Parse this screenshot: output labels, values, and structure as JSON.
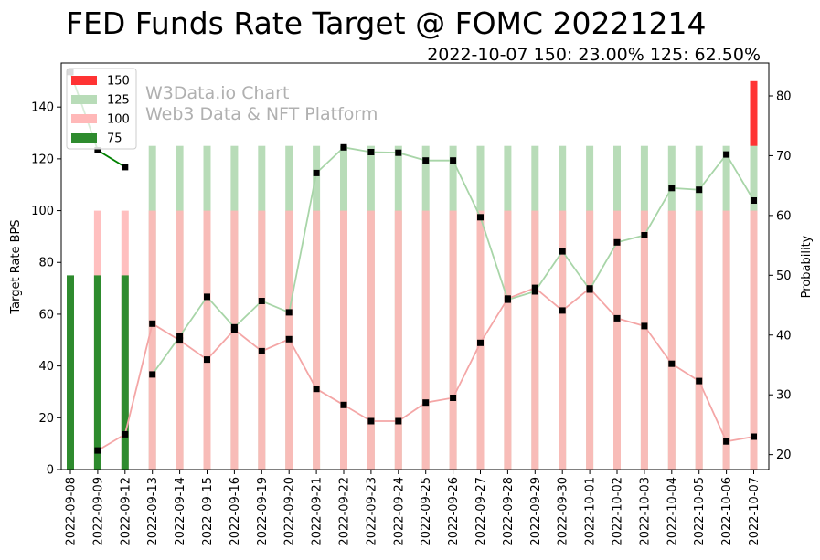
{
  "chart_data": {
    "type": "bar",
    "title": "FED Funds Rate Target @ FOMC 20221214",
    "subtitle": "2022-10-07 150: 23.00% 125: 62.50%",
    "watermark": [
      "W3Data.io Chart",
      "Web3 Data & NFT Platform"
    ],
    "ylabel_left": "Target Rate BPS",
    "ylabel_right": "Probability",
    "ylim_left": [
      0,
      157
    ],
    "ylim_right": [
      17.5,
      85.5
    ],
    "yticks_left": [
      "0",
      "20",
      "40",
      "60",
      "80",
      "100",
      "120",
      "140"
    ],
    "yticks_right": [
      "20",
      "30",
      "40",
      "50",
      "60",
      "70",
      "80"
    ],
    "categories": [
      "2022-09-08",
      "2022-09-09",
      "2022-09-12",
      "2022-09-13",
      "2022-09-14",
      "2022-09-15",
      "2022-09-16",
      "2022-09-19",
      "2022-09-20",
      "2022-09-21",
      "2022-09-22",
      "2022-09-23",
      "2022-09-24",
      "2022-09-25",
      "2022-09-26",
      "2022-09-27",
      "2022-09-28",
      "2022-09-29",
      "2022-09-30",
      "2022-10-01",
      "2022-10-02",
      "2022-10-03",
      "2022-10-04",
      "2022-10-05",
      "2022-10-06",
      "2022-10-07"
    ],
    "legend": {
      "placement": "top-left",
      "entries": [
        "150",
        "125",
        "100",
        "75"
      ]
    },
    "bar_series": [
      {
        "name": "150",
        "color": "#ff3333",
        "values": [
          null,
          null,
          null,
          null,
          null,
          null,
          null,
          null,
          null,
          null,
          null,
          null,
          null,
          null,
          null,
          null,
          null,
          null,
          null,
          null,
          null,
          null,
          null,
          null,
          null,
          150
        ]
      },
      {
        "name": "125",
        "color": "#b8dcb8",
        "values": [
          null,
          null,
          null,
          125,
          125,
          125,
          125,
          125,
          125,
          125,
          125,
          125,
          125,
          125,
          125,
          125,
          125,
          125,
          125,
          125,
          125,
          125,
          125,
          125,
          125,
          125
        ]
      },
      {
        "name": "100",
        "color": "#ffb8b8",
        "values": [
          null,
          100,
          100,
          100,
          100,
          100,
          100,
          100,
          100,
          100,
          100,
          100,
          100,
          100,
          100,
          100,
          100,
          100,
          100,
          100,
          100,
          100,
          100,
          100,
          100,
          100
        ]
      },
      {
        "name": "75",
        "color": "#2e8b2e",
        "values": [
          75,
          75,
          75,
          null,
          null,
          null,
          null,
          null,
          null,
          null,
          null,
          null,
          null,
          null,
          null,
          null,
          null,
          null,
          null,
          null,
          null,
          null,
          null,
          null,
          null,
          null
        ]
      }
    ],
    "line_series": [
      {
        "name": "75",
        "color": "#008000",
        "values": [
          84.0,
          70.9,
          68.1,
          null,
          null,
          null,
          null,
          null,
          null,
          null,
          null,
          null,
          null,
          null,
          null,
          null,
          null,
          null,
          null,
          null,
          null,
          null,
          null,
          null,
          null,
          null
        ]
      },
      {
        "name": "125",
        "color": "#a8d5a8",
        "values": [
          null,
          null,
          null,
          33.4,
          39.8,
          46.4,
          41.3,
          45.7,
          43.8,
          67.1,
          71.4,
          70.6,
          70.5,
          69.2,
          69.2,
          59.7,
          45.9,
          47.3,
          54.0,
          47.6,
          55.5,
          56.7,
          64.6,
          64.3,
          70.2,
          62.5
        ]
      },
      {
        "name": "100",
        "color": "#f4a6a6",
        "values": [
          null,
          20.7,
          23.4,
          41.9,
          39.1,
          35.9,
          40.9,
          37.3,
          39.3,
          31.0,
          28.3,
          25.6,
          25.6,
          28.7,
          29.5,
          38.7,
          46.1,
          47.9,
          44.1,
          47.8,
          42.8,
          41.5,
          35.2,
          32.3,
          22.2,
          23.0
        ]
      }
    ]
  }
}
